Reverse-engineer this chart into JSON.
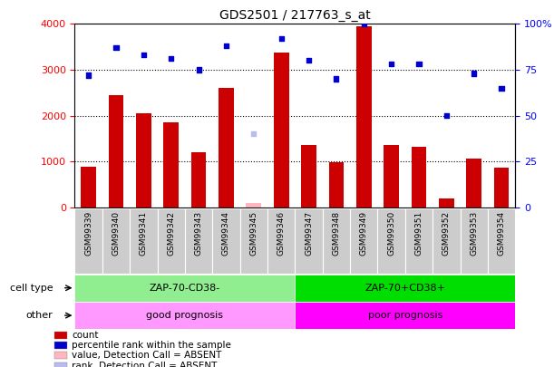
{
  "title": "GDS2501 / 217763_s_at",
  "samples": [
    "GSM99339",
    "GSM99340",
    "GSM99341",
    "GSM99342",
    "GSM99343",
    "GSM99344",
    "GSM99345",
    "GSM99346",
    "GSM99347",
    "GSM99348",
    "GSM99349",
    "GSM99350",
    "GSM99351",
    "GSM99352",
    "GSM99353",
    "GSM99354"
  ],
  "count_values": [
    880,
    2450,
    2050,
    1850,
    1200,
    2600,
    90,
    3380,
    1350,
    980,
    3950,
    1350,
    1320,
    200,
    1060,
    860
  ],
  "rank_values": [
    72,
    87,
    83,
    81,
    75,
    88,
    40,
    92,
    80,
    70,
    100,
    78,
    78,
    50,
    73,
    65
  ],
  "absent_indices": [
    6
  ],
  "group1_count": 8,
  "group2_count": 8,
  "cell_type_1": "ZAP-70-CD38-",
  "cell_type_2": "ZAP-70+CD38+",
  "other_1": "good prognosis",
  "other_2": "poor prognosis",
  "cell_type_color_1": "#90EE90",
  "cell_type_color_2": "#00DD00",
  "other_color_1": "#FF99FF",
  "other_color_2": "#FF00FF",
  "bar_color": "#CC0000",
  "absent_bar_color": "#FFB6C1",
  "dot_color": "#0000CC",
  "absent_dot_color": "#BBBBEE",
  "ylim_left": [
    0,
    4000
  ],
  "ylim_right": [
    0,
    100
  ],
  "yticks_left": [
    0,
    1000,
    2000,
    3000,
    4000
  ],
  "yticks_right": [
    0,
    25,
    50,
    75,
    100
  ],
  "legend_items": [
    {
      "label": "count",
      "color": "#CC0000"
    },
    {
      "label": "percentile rank within the sample",
      "color": "#0000CC"
    },
    {
      "label": "value, Detection Call = ABSENT",
      "color": "#FFB6C1"
    },
    {
      "label": "rank, Detection Call = ABSENT",
      "color": "#BBBBEE"
    }
  ]
}
